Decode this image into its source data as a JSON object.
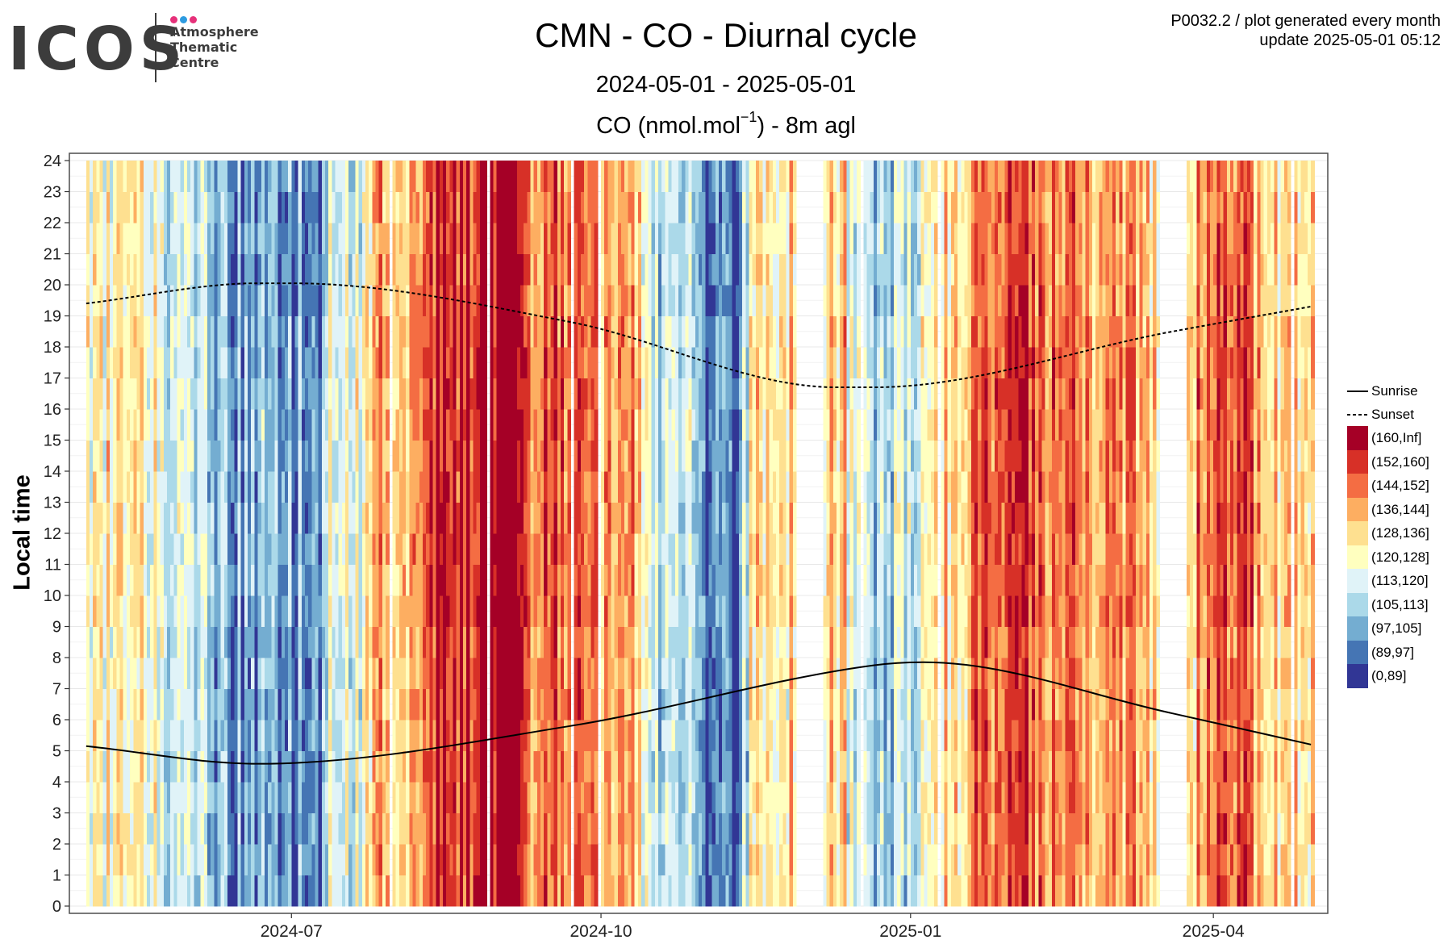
{
  "header": {
    "logo": {
      "word": "ICOS",
      "lines": [
        "Atmosphere",
        "Thematic",
        "Centre"
      ],
      "dot_colors": [
        "#e6317a",
        "#2d9be0",
        "#e6317a"
      ]
    },
    "title": "CMN - CO - Diurnal cycle",
    "subtitle": "2024-05-01 - 2025-05-01",
    "measure_pre": "CO (nmol.mol",
    "measure_sup": "−1",
    "measure_post": ") - 8m agl",
    "info_line1": "P0032.2 / plot generated every month",
    "info_line2": "update  2025-05-01 05:12"
  },
  "chart_data": {
    "type": "heatmap",
    "title": "CMN - CO - Diurnal cycle",
    "subtitle": "2024-05-01 - 2025-05-01",
    "ylabel": "Local time",
    "xlabel": "",
    "x_range": [
      "2024-04-26",
      "2025-05-05"
    ],
    "x_data_range": [
      "2024-05-01",
      "2025-04-30"
    ],
    "x_ticks": [
      {
        "date": "2024-07-01",
        "label": "2024-07"
      },
      {
        "date": "2024-10-01",
        "label": "2024-10"
      },
      {
        "date": "2025-01-01",
        "label": "2025-01"
      },
      {
        "date": "2025-04-01",
        "label": "2025-04"
      }
    ],
    "ylim": [
      0,
      24
    ],
    "y_ticks": [
      0,
      1,
      2,
      3,
      4,
      5,
      6,
      7,
      8,
      9,
      10,
      11,
      12,
      13,
      14,
      15,
      16,
      17,
      18,
      19,
      20,
      21,
      22,
      23,
      24
    ],
    "grid": true,
    "legend_position": "right",
    "classes": [
      {
        "label": "(160,Inf]",
        "color": "#a50026"
      },
      {
        "label": "(152,160]",
        "color": "#d73027"
      },
      {
        "label": "(144,152]",
        "color": "#f46d43"
      },
      {
        "label": "(136,144]",
        "color": "#fdae61"
      },
      {
        "label": "(128,136]",
        "color": "#fee090"
      },
      {
        "label": "(120,128]",
        "color": "#ffffbf"
      },
      {
        "label": "(113,120]",
        "color": "#e0f3f8"
      },
      {
        "label": "(105,113]",
        "color": "#abd9e9"
      },
      {
        "label": "(97,105]",
        "color": "#74add1"
      },
      {
        "label": "(89,97]",
        "color": "#4575b4"
      },
      {
        "label": "(0,89]",
        "color": "#313695"
      }
    ],
    "periods_class_index": [
      {
        "from": "2024-05-01",
        "to": "2024-05-25",
        "class_index": 5
      },
      {
        "from": "2024-05-25",
        "to": "2024-06-08",
        "class_index": 7
      },
      {
        "from": "2024-06-08",
        "to": "2024-07-12",
        "class_index": 8
      },
      {
        "from": "2024-07-12",
        "to": "2024-07-25",
        "class_index": 6
      },
      {
        "from": "2024-07-25",
        "to": "2024-08-12",
        "class_index": 3
      },
      {
        "from": "2024-08-12",
        "to": "2024-08-28",
        "class_index": 1
      },
      {
        "from": "2024-08-28",
        "to": "2024-09-08",
        "class_index": 0
      },
      {
        "from": "2024-09-08",
        "to": "2024-09-25",
        "class_index": 2
      },
      {
        "from": "2024-09-25",
        "to": "2024-10-15",
        "class_index": 3
      },
      {
        "from": "2024-10-15",
        "to": "2024-10-30",
        "class_index": 7
      },
      {
        "from": "2024-10-30",
        "to": "2024-11-14",
        "class_index": 9
      },
      {
        "from": "2024-11-14",
        "to": "2024-11-28",
        "class_index": 4
      },
      {
        "from": "2024-11-28",
        "to": "2024-12-15",
        "class_index": 4
      },
      {
        "from": "2024-12-15",
        "to": "2025-01-05",
        "class_index": 7
      },
      {
        "from": "2025-01-05",
        "to": "2025-01-20",
        "class_index": 4
      },
      {
        "from": "2025-01-20",
        "to": "2025-02-20",
        "class_index": 2
      },
      {
        "from": "2025-02-20",
        "to": "2025-03-15",
        "class_index": 3
      },
      {
        "from": "2025-03-15",
        "to": "2025-03-27",
        "class_index": 5
      },
      {
        "from": "2025-03-27",
        "to": "2025-04-15",
        "class_index": 2
      },
      {
        "from": "2025-04-15",
        "to": "2025-04-30",
        "class_index": 4
      }
    ],
    "missing_periods": [
      {
        "from": "2024-11-28",
        "to": "2024-12-06"
      },
      {
        "from": "2025-03-16",
        "to": "2025-03-24"
      }
    ],
    "series": [
      {
        "name": "Sunrise",
        "style": "solid",
        "x": [
          "2024-05-01",
          "2024-06-21",
          "2024-09-22",
          "2024-12-21",
          "2025-01-05",
          "2025-03-20",
          "2025-04-30"
        ],
        "y": [
          5.15,
          4.58,
          5.8,
          7.75,
          7.85,
          6.2,
          5.2
        ]
      },
      {
        "name": "Sunset",
        "style": "dashed",
        "x": [
          "2024-05-01",
          "2024-06-21",
          "2024-07-01",
          "2024-09-22",
          "2024-12-10",
          "2024-12-21",
          "2025-03-20",
          "2025-04-30"
        ],
        "y": [
          19.4,
          20.05,
          20.05,
          18.8,
          16.7,
          16.7,
          18.5,
          19.3
        ]
      }
    ]
  }
}
